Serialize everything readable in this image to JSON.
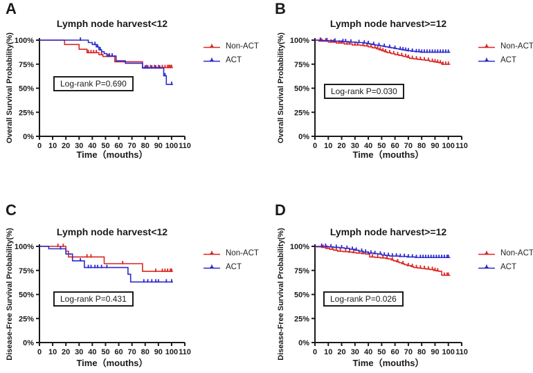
{
  "colors": {
    "non_act": "#d92522",
    "act": "#2b28cc",
    "axis": "#1a1a1a",
    "background": "#ffffff"
  },
  "chart_data": [
    {
      "type": "line",
      "subtype": "kaplan-meier-step",
      "panel": "A",
      "title": "Lymph node harvest<12",
      "xlabel": "Time（mouths）",
      "ylabel": "Overall Survival Probability(%)",
      "annotation": "Log-rank P=0.690",
      "legend_position": "right",
      "grid": false,
      "xlim": [
        0,
        110
      ],
      "ylim": [
        0,
        100
      ],
      "x_ticks": [
        0,
        10,
        20,
        30,
        40,
        50,
        60,
        70,
        80,
        90,
        100,
        110
      ],
      "y_ticks": [
        0,
        25,
        50,
        75,
        100
      ],
      "y_tick_suffix": "%",
      "series": [
        {
          "name": "Non-ACT",
          "color": "#d92522",
          "step_points": [
            [
              0,
              100
            ],
            [
              19,
              95.5
            ],
            [
              30,
              90.5
            ],
            [
              36,
              87
            ],
            [
              45,
              85
            ],
            [
              48,
              83
            ],
            [
              57,
              77.5
            ],
            [
              78,
              71.5
            ],
            [
              101,
              71.5
            ]
          ],
          "censor_times": [
            37,
            39,
            41,
            43,
            47,
            52,
            81,
            84,
            87,
            90,
            93,
            95,
            97,
            98,
            99,
            100
          ]
        },
        {
          "name": "ACT",
          "color": "#2b28cc",
          "step_points": [
            [
              0,
              100
            ],
            [
              37,
              97.5
            ],
            [
              40,
              95.5
            ],
            [
              43,
              93
            ],
            [
              45,
              90
            ],
            [
              47,
              88
            ],
            [
              49,
              86
            ],
            [
              51,
              83.5
            ],
            [
              58,
              78.5
            ],
            [
              65,
              76
            ],
            [
              78,
              71
            ],
            [
              94,
              63
            ],
            [
              96,
              54
            ],
            [
              101,
              54
            ]
          ],
          "censor_times": [
            31,
            42,
            44,
            46,
            53,
            55,
            80,
            82,
            85,
            88,
            91,
            95,
            100
          ]
        }
      ]
    },
    {
      "type": "line",
      "subtype": "kaplan-meier-step",
      "panel": "B",
      "title": "Lymph node harvest>=12",
      "xlabel": "Time（mouths）",
      "ylabel": "Overall Survival Probability(%)",
      "annotation": "Log-rank P=0.030",
      "legend_position": "right",
      "grid": false,
      "xlim": [
        0,
        110
      ],
      "ylim": [
        0,
        100
      ],
      "x_ticks": [
        0,
        10,
        20,
        30,
        40,
        50,
        60,
        70,
        80,
        90,
        100,
        110
      ],
      "y_ticks": [
        0,
        25,
        50,
        75,
        100
      ],
      "y_tick_suffix": "%",
      "series": [
        {
          "name": "Non-ACT",
          "color": "#d92522",
          "step_points": [
            [
              0,
              100
            ],
            [
              3,
              99
            ],
            [
              10,
              98
            ],
            [
              16,
              97
            ],
            [
              22,
              96
            ],
            [
              28,
              95
            ],
            [
              34,
              94.5
            ],
            [
              37,
              94
            ],
            [
              40,
              93
            ],
            [
              43,
              92
            ],
            [
              46,
              91
            ],
            [
              48,
              90
            ],
            [
              50,
              89
            ],
            [
              52,
              88
            ],
            [
              54,
              87
            ],
            [
              57,
              86
            ],
            [
              60,
              85
            ],
            [
              63,
              84
            ],
            [
              66,
              83
            ],
            [
              69,
              82
            ],
            [
              71,
              81
            ],
            [
              74,
              80.5
            ],
            [
              77,
              80
            ],
            [
              80,
              79.5
            ],
            [
              83,
              79
            ],
            [
              86,
              78
            ],
            [
              89,
              77.5
            ],
            [
              91,
              77
            ],
            [
              93,
              76.5
            ],
            [
              95,
              75
            ],
            [
              101,
              74.5
            ]
          ],
          "censor_times": [
            5,
            8,
            12,
            14,
            18,
            20,
            24,
            26,
            30,
            32,
            36,
            39,
            42,
            45,
            47,
            49,
            51,
            53,
            56,
            59,
            62,
            65,
            68,
            70,
            73,
            76,
            79,
            82,
            85,
            88,
            90,
            92,
            94,
            96,
            98,
            100
          ]
        },
        {
          "name": "ACT",
          "color": "#2b28cc",
          "step_points": [
            [
              0,
              100
            ],
            [
              6,
              99.5
            ],
            [
              13,
              99
            ],
            [
              19,
              98.5
            ],
            [
              25,
              98
            ],
            [
              31,
              97.5
            ],
            [
              36,
              97
            ],
            [
              39,
              96.5
            ],
            [
              41,
              96
            ],
            [
              43,
              95.5
            ],
            [
              45,
              95
            ],
            [
              47,
              94.5
            ],
            [
              49,
              94
            ],
            [
              51,
              93.5
            ],
            [
              53,
              93
            ],
            [
              55,
              92.5
            ],
            [
              57,
              92
            ],
            [
              59,
              91.5
            ],
            [
              61,
              91
            ],
            [
              63,
              90.5
            ],
            [
              65,
              90
            ],
            [
              67,
              89.5
            ],
            [
              69,
              89
            ],
            [
              72,
              88.5
            ],
            [
              75,
              88
            ],
            [
              79,
              87.5
            ],
            [
              101,
              87
            ]
          ],
          "censor_times": [
            4,
            9,
            15,
            21,
            23,
            27,
            33,
            37,
            40,
            44,
            48,
            52,
            56,
            60,
            64,
            66,
            68,
            70,
            73,
            76,
            78,
            80,
            82,
            84,
            86,
            88,
            90,
            92,
            94,
            96,
            98,
            100
          ]
        }
      ]
    },
    {
      "type": "line",
      "subtype": "kaplan-meier-step",
      "panel": "C",
      "title": "Lymph node harvest<12",
      "xlabel": "Time（mouths）",
      "ylabel": "Disease-Free Survival Probability(%)",
      "annotation": "Log-rank P=0.431",
      "legend_position": "right",
      "grid": false,
      "xlim": [
        0,
        110
      ],
      "ylim": [
        0,
        100
      ],
      "x_ticks": [
        0,
        10,
        20,
        30,
        40,
        50,
        60,
        70,
        80,
        90,
        100,
        110
      ],
      "y_ticks": [
        0,
        25,
        50,
        75,
        100
      ],
      "y_tick_suffix": "%",
      "series": [
        {
          "name": "Non-ACT",
          "color": "#d92522",
          "step_points": [
            [
              0,
              100
            ],
            [
              20,
              95
            ],
            [
              22,
              89
            ],
            [
              49,
              82
            ],
            [
              78,
              74
            ],
            [
              101,
              74
            ]
          ],
          "censor_times": [
            14,
            18,
            36,
            39,
            63,
            88,
            93,
            95,
            97,
            99,
            100
          ]
        },
        {
          "name": "ACT",
          "color": "#2b28cc",
          "step_points": [
            [
              0,
              100
            ],
            [
              7,
              97.5
            ],
            [
              20,
              92
            ],
            [
              25,
              85
            ],
            [
              34,
              78
            ],
            [
              67,
              71
            ],
            [
              69,
              63
            ],
            [
              101,
              63
            ]
          ],
          "censor_times": [
            16,
            31,
            37,
            39,
            42,
            44,
            47,
            51,
            79,
            82,
            85,
            88,
            90,
            96,
            100
          ]
        }
      ]
    },
    {
      "type": "line",
      "subtype": "kaplan-meier-step",
      "panel": "D",
      "title": "Lymph node harvest>=12",
      "xlabel": "Time（mouths）",
      "ylabel": "Disease-Free Survival Probability(%)",
      "annotation": "Log-rank P=0.026",
      "legend_position": "right",
      "grid": false,
      "xlim": [
        0,
        110
      ],
      "ylim": [
        0,
        100
      ],
      "x_ticks": [
        0,
        10,
        20,
        30,
        40,
        50,
        60,
        70,
        80,
        90,
        100,
        110
      ],
      "y_ticks": [
        0,
        25,
        50,
        75,
        100
      ],
      "y_tick_suffix": "%",
      "series": [
        {
          "name": "Non-ACT",
          "color": "#d92522",
          "step_points": [
            [
              0,
              99.5
            ],
            [
              5,
              99
            ],
            [
              8,
              98
            ],
            [
              11,
              97
            ],
            [
              14,
              96
            ],
            [
              17,
              95
            ],
            [
              21,
              94.5
            ],
            [
              25,
              94
            ],
            [
              28,
              93.5
            ],
            [
              31,
              93
            ],
            [
              35,
              92.5
            ],
            [
              38,
              92
            ],
            [
              41,
              89
            ],
            [
              45,
              88.5
            ],
            [
              49,
              88
            ],
            [
              53,
              87.5
            ],
            [
              55,
              87
            ],
            [
              57,
              86
            ],
            [
              59,
              85
            ],
            [
              61,
              84
            ],
            [
              63,
              83
            ],
            [
              65,
              82
            ],
            [
              67,
              81
            ],
            [
              69,
              80
            ],
            [
              72,
              79
            ],
            [
              74,
              78
            ],
            [
              77,
              77.5
            ],
            [
              80,
              77
            ],
            [
              83,
              76.5
            ],
            [
              86,
              76
            ],
            [
              89,
              75
            ],
            [
              91,
              74.5
            ],
            [
              93,
              74
            ],
            [
              95,
              70
            ],
            [
              101,
              69.5
            ]
          ],
          "censor_times": [
            6,
            9,
            13,
            16,
            19,
            23,
            26,
            29,
            33,
            36,
            40,
            43,
            47,
            51,
            54,
            58,
            62,
            66,
            70,
            73,
            76,
            79,
            82,
            85,
            88,
            90,
            92,
            97,
            99,
            100
          ]
        },
        {
          "name": "ACT",
          "color": "#2b28cc",
          "step_points": [
            [
              0,
              100
            ],
            [
              10,
              99.5
            ],
            [
              14,
              99
            ],
            [
              18,
              98.5
            ],
            [
              22,
              98
            ],
            [
              26,
              97
            ],
            [
              30,
              96
            ],
            [
              33,
              95
            ],
            [
              36,
              94
            ],
            [
              40,
              93
            ],
            [
              44,
              92.5
            ],
            [
              47,
              92
            ],
            [
              50,
              91
            ],
            [
              53,
              90.5
            ],
            [
              56,
              90
            ],
            [
              63,
              89.5
            ],
            [
              69,
              89
            ],
            [
              75,
              88.5
            ],
            [
              101,
              88
            ]
          ],
          "censor_times": [
            5,
            8,
            12,
            16,
            20,
            24,
            28,
            31,
            35,
            38,
            42,
            45,
            49,
            52,
            55,
            58,
            61,
            64,
            67,
            70,
            73,
            76,
            79,
            81,
            83,
            85,
            87,
            89,
            91,
            93,
            95,
            97,
            99,
            100
          ]
        }
      ]
    }
  ]
}
